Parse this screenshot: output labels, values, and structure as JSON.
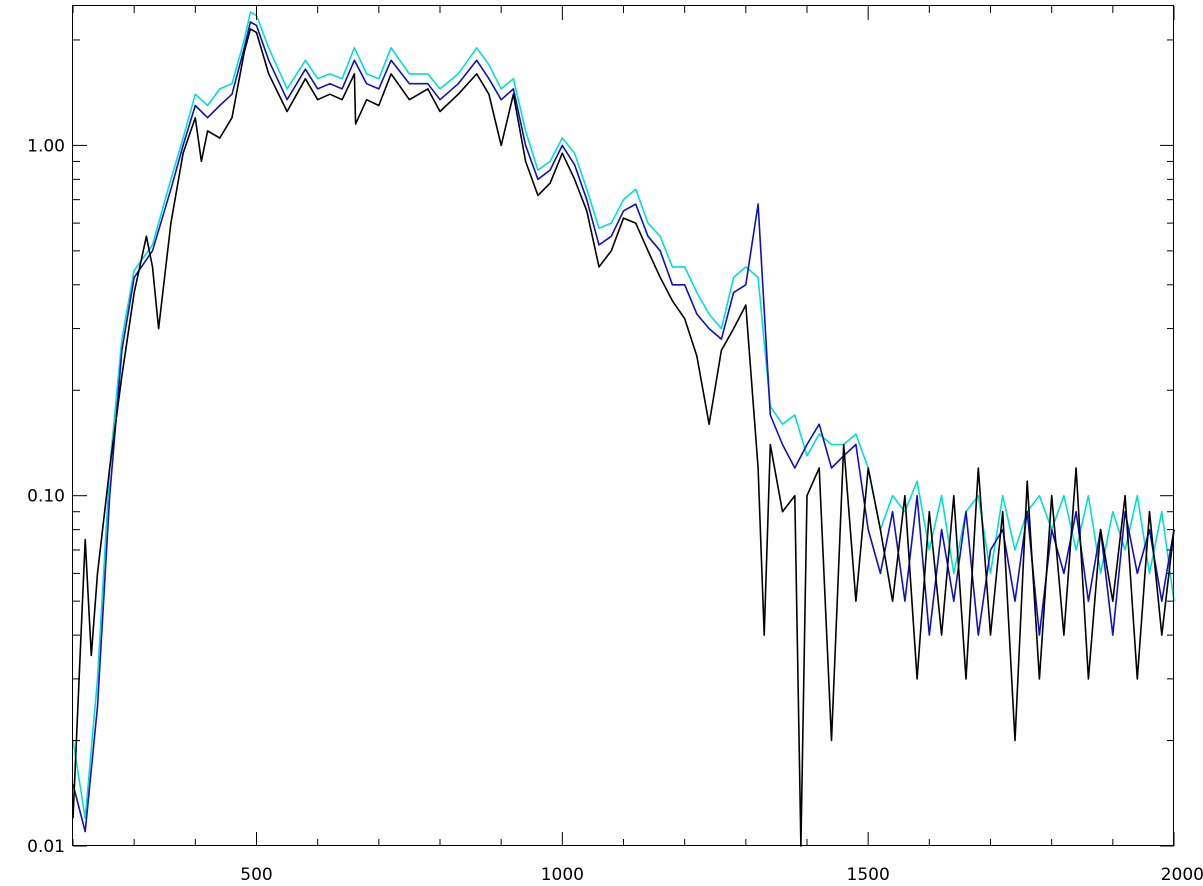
{
  "chart_data": {
    "type": "line",
    "title": "",
    "xlabel": "",
    "ylabel": "",
    "xlim": [
      200,
      2000
    ],
    "ylim": [
      0.01,
      2.5
    ],
    "yscale": "log",
    "grid": false,
    "x_ticks": [
      {
        "value": 500,
        "label": "500"
      },
      {
        "value": 1000,
        "label": "1000"
      },
      {
        "value": 1500,
        "label": "1500"
      },
      {
        "value": 2000,
        "label": "2000"
      }
    ],
    "y_ticks": [
      {
        "value": 0.01,
        "label": "0.01"
      },
      {
        "value": 0.1,
        "label": "0.10"
      },
      {
        "value": 1.0,
        "label": "1.00"
      }
    ],
    "series": [
      {
        "color": "#00e0d0",
        "x": [
          200,
          220,
          240,
          260,
          280,
          300,
          330,
          360,
          380,
          400,
          420,
          440,
          460,
          480,
          490,
          500,
          520,
          550,
          580,
          600,
          620,
          640,
          660,
          680,
          700,
          720,
          750,
          780,
          800,
          830,
          860,
          880,
          900,
          920,
          940,
          960,
          980,
          1000,
          1020,
          1040,
          1060,
          1080,
          1100,
          1120,
          1140,
          1160,
          1180,
          1200,
          1220,
          1240,
          1260,
          1280,
          1300,
          1320,
          1340,
          1360,
          1380,
          1400,
          1420,
          1440,
          1460,
          1480,
          1500,
          1520,
          1540,
          1560,
          1580,
          1600,
          1620,
          1640,
          1660,
          1680,
          1700,
          1720,
          1740,
          1760,
          1780,
          1800,
          1820,
          1840,
          1860,
          1880,
          1900,
          1920,
          1940,
          1960,
          1980,
          2000
        ],
        "values": [
          0.02,
          0.012,
          0.03,
          0.12,
          0.28,
          0.44,
          0.52,
          0.8,
          1.05,
          1.4,
          1.3,
          1.45,
          1.5,
          2.0,
          2.4,
          2.35,
          1.9,
          1.45,
          1.75,
          1.55,
          1.6,
          1.55,
          1.9,
          1.6,
          1.55,
          1.9,
          1.6,
          1.6,
          1.45,
          1.6,
          1.9,
          1.7,
          1.45,
          1.55,
          1.1,
          0.85,
          0.9,
          1.05,
          0.95,
          0.75,
          0.58,
          0.6,
          0.7,
          0.75,
          0.6,
          0.55,
          0.45,
          0.45,
          0.38,
          0.33,
          0.3,
          0.42,
          0.45,
          0.42,
          0.18,
          0.16,
          0.17,
          0.13,
          0.15,
          0.14,
          0.14,
          0.15,
          0.12,
          0.08,
          0.1,
          0.09,
          0.11,
          0.07,
          0.1,
          0.06,
          0.09,
          0.1,
          0.06,
          0.1,
          0.07,
          0.09,
          0.1,
          0.08,
          0.1,
          0.07,
          0.1,
          0.06,
          0.09,
          0.07,
          0.1,
          0.06,
          0.09,
          0.05
        ]
      },
      {
        "color": "#1010c0",
        "x": [
          200,
          220,
          240,
          260,
          280,
          300,
          330,
          360,
          380,
          400,
          420,
          440,
          460,
          480,
          490,
          500,
          520,
          550,
          580,
          600,
          620,
          640,
          660,
          680,
          700,
          720,
          750,
          780,
          800,
          830,
          860,
          880,
          900,
          920,
          940,
          960,
          980,
          1000,
          1020,
          1040,
          1060,
          1080,
          1100,
          1120,
          1140,
          1160,
          1180,
          1200,
          1220,
          1240,
          1260,
          1280,
          1300,
          1320,
          1340,
          1360,
          1380,
          1400,
          1420,
          1440,
          1460,
          1480,
          1500,
          1520,
          1540,
          1560,
          1580,
          1600,
          1620,
          1640,
          1660,
          1680,
          1700,
          1720,
          1740,
          1760,
          1780,
          1800,
          1820,
          1840,
          1860,
          1880,
          1900,
          1920,
          1940,
          1960,
          1980,
          2000
        ],
        "values": [
          0.015,
          0.011,
          0.025,
          0.1,
          0.26,
          0.42,
          0.5,
          0.75,
          1.0,
          1.3,
          1.2,
          1.3,
          1.4,
          1.9,
          2.25,
          2.2,
          1.75,
          1.35,
          1.65,
          1.45,
          1.5,
          1.45,
          1.75,
          1.5,
          1.45,
          1.75,
          1.5,
          1.5,
          1.35,
          1.5,
          1.75,
          1.55,
          1.35,
          1.45,
          1.0,
          0.8,
          0.85,
          1.0,
          0.88,
          0.7,
          0.52,
          0.55,
          0.65,
          0.68,
          0.55,
          0.5,
          0.4,
          0.4,
          0.33,
          0.3,
          0.28,
          0.38,
          0.4,
          0.68,
          0.17,
          0.14,
          0.12,
          0.14,
          0.16,
          0.12,
          0.13,
          0.14,
          0.08,
          0.06,
          0.09,
          0.05,
          0.1,
          0.04,
          0.08,
          0.05,
          0.09,
          0.04,
          0.07,
          0.08,
          0.05,
          0.09,
          0.04,
          0.08,
          0.06,
          0.09,
          0.05,
          0.08,
          0.04,
          0.09,
          0.06,
          0.08,
          0.05,
          0.08
        ]
      },
      {
        "color": "#000000",
        "x": [
          200,
          220,
          230,
          240,
          260,
          280,
          300,
          320,
          330,
          340,
          360,
          380,
          400,
          410,
          420,
          440,
          460,
          480,
          490,
          500,
          520,
          550,
          580,
          600,
          620,
          640,
          660,
          662,
          680,
          700,
          720,
          750,
          780,
          800,
          830,
          860,
          880,
          900,
          920,
          940,
          960,
          980,
          1000,
          1020,
          1040,
          1060,
          1080,
          1100,
          1120,
          1140,
          1160,
          1180,
          1200,
          1220,
          1240,
          1260,
          1280,
          1300,
          1320,
          1330,
          1340,
          1360,
          1380,
          1390,
          1400,
          1420,
          1440,
          1460,
          1480,
          1500,
          1520,
          1540,
          1560,
          1580,
          1600,
          1620,
          1640,
          1660,
          1680,
          1700,
          1720,
          1740,
          1760,
          1780,
          1800,
          1820,
          1840,
          1860,
          1880,
          1900,
          1920,
          1940,
          1960,
          1980,
          2000
        ],
        "values": [
          0.012,
          0.075,
          0.035,
          0.06,
          0.12,
          0.22,
          0.38,
          0.55,
          0.45,
          0.3,
          0.6,
          0.95,
          1.2,
          0.9,
          1.1,
          1.05,
          1.2,
          1.85,
          2.15,
          2.1,
          1.6,
          1.25,
          1.55,
          1.35,
          1.4,
          1.35,
          1.6,
          1.15,
          1.35,
          1.3,
          1.6,
          1.35,
          1.45,
          1.25,
          1.4,
          1.6,
          1.4,
          1.0,
          1.4,
          0.9,
          0.72,
          0.78,
          0.95,
          0.8,
          0.65,
          0.45,
          0.5,
          0.62,
          0.6,
          0.5,
          0.42,
          0.36,
          0.32,
          0.25,
          0.16,
          0.26,
          0.3,
          0.35,
          0.12,
          0.04,
          0.14,
          0.09,
          0.1,
          0.01,
          0.1,
          0.12,
          0.02,
          0.14,
          0.05,
          0.12,
          0.08,
          0.05,
          0.1,
          0.03,
          0.09,
          0.04,
          0.1,
          0.03,
          0.12,
          0.04,
          0.09,
          0.02,
          0.11,
          0.03,
          0.1,
          0.04,
          0.12,
          0.03,
          0.08,
          0.05,
          0.1,
          0.03,
          0.09,
          0.04,
          0.08
        ]
      }
    ]
  }
}
